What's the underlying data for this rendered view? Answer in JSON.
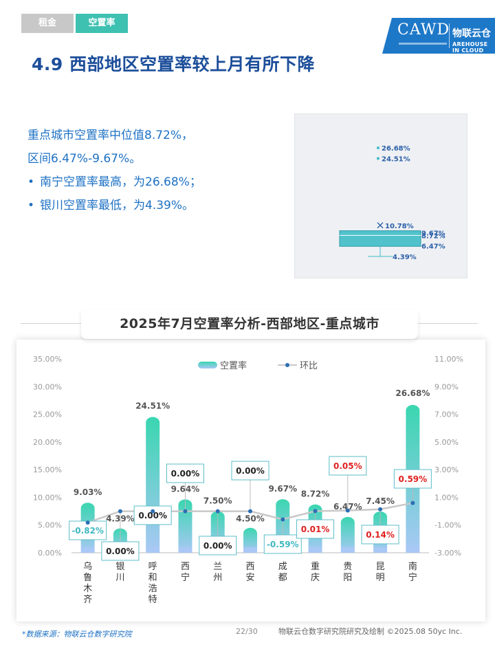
{
  "tabs": [
    {
      "label": "租金",
      "active": false
    },
    {
      "label": "空置率",
      "active": true
    }
  ],
  "logo": {
    "en": "CAWD",
    "cn": "物联云仓",
    "sub_en": "AREHOUSE IN CLOUD"
  },
  "page_title": "4.9 西部地区空置率较上月有所下降",
  "summary": {
    "line1": "重点城市空置率中位值8.72%，",
    "line2": "区间6.47%-9.67%。",
    "bullet_char": "•",
    "bullet1": "南宁空置率最高，为26.68%；",
    "bullet2": "银川空置率最低，为4.39%。"
  },
  "boxplot": {
    "outliers": [
      26.68,
      24.51
    ],
    "mean": 10.78,
    "q3": 9.67,
    "median": 8.72,
    "q1": 6.47,
    "min": 4.39,
    "labels": {
      "outlier_high": "26.68%",
      "outlier_second": "24.51%",
      "mean": "10.78%",
      "q3": "9.67%",
      "median": "8.72%",
      "q1": "6.47%",
      "min": "4.39%"
    },
    "color": "#3fbcc8"
  },
  "chart_title": "2025年7月空置率分析-西部地区-重点城市",
  "chart_data": {
    "type": "bar",
    "categories": [
      "乌鲁木齐",
      "银川",
      "呼和浩特",
      "西宁",
      "兰州",
      "西安",
      "成都",
      "重庆",
      "贵阳",
      "昆明",
      "南宁"
    ],
    "series": [
      {
        "name": "空置率",
        "type": "bar",
        "axis": "left",
        "values": [
          9.03,
          4.39,
          24.51,
          9.64,
          7.5,
          4.5,
          9.67,
          8.72,
          6.47,
          7.45,
          26.68
        ],
        "labels": [
          "9.03%",
          "4.39%",
          "24.51%",
          "9.64%",
          "7.50%",
          "4.50%",
          "9.67%",
          "8.72%",
          "6.47%",
          "7.45%",
          "26.68%"
        ]
      },
      {
        "name": "环比",
        "type": "line",
        "axis": "right",
        "values": [
          -0.82,
          0.0,
          0.0,
          0.0,
          0.0,
          0.0,
          -0.59,
          0.01,
          0.05,
          0.14,
          0.59
        ],
        "labels": [
          "-0.82%",
          "0.00%",
          "0.00%",
          "0.00%",
          "0.00%",
          "0.00%",
          "-0.59%",
          "0.01%",
          "0.05%",
          "0.14%",
          "0.59%"
        ]
      }
    ],
    "y_left": {
      "min": 0,
      "max": 35,
      "step": 5,
      "ticks": [
        "0.00%",
        "5.00%",
        "10.00%",
        "15.00%",
        "20.00%",
        "25.00%",
        "30.00%",
        "35.00%"
      ]
    },
    "y_right": {
      "min": -3,
      "max": 11,
      "step": 2,
      "ticks": [
        "-3.00%",
        "-1.00%",
        "1.00%",
        "3.00%",
        "5.00%",
        "7.00%",
        "9.00%",
        "11.00%"
      ]
    },
    "legend": {
      "position": "top-center",
      "bar": "空置率",
      "line": "环比"
    },
    "grid": false,
    "colors": {
      "bar_top": "#3ad6b0",
      "bar_bottom": "#a9c8f5",
      "line": "#c8c8c8",
      "marker": "#2c6eb5",
      "label_neg": "#3fb8c0",
      "label_pos": "#e02020",
      "label_zero": "#222222",
      "box_border": "#5bbcc8"
    }
  },
  "footer": {
    "source": "*数据来源：物联云仓数字研究院",
    "page": "22/30",
    "copyright": "物联云仓数字研究院研究及绘制   ©2025.08 50yc Inc."
  }
}
